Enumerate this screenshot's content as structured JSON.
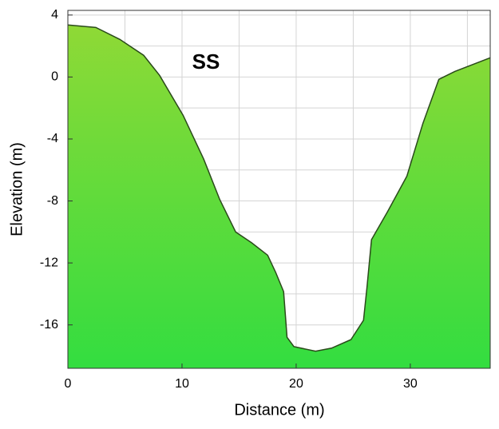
{
  "chart_data": {
    "type": "area",
    "annotation": "SS",
    "x_label": "Distance (m)",
    "y_label": "Elevation (m)",
    "x": [
      0,
      2.45,
      4.55,
      6.64,
      8.04,
      10.1,
      11.9,
      13.3,
      14.7,
      16.1,
      17.5,
      18.2,
      18.9,
      19.2,
      19.8,
      21.7,
      23.1,
      24.8,
      25.9,
      26.2,
      26.6,
      28.0,
      29.7,
      31.1,
      32.5,
      33.9,
      37
    ],
    "values": [
      3.36,
      3.2,
      2.43,
      1.4,
      0.1,
      -2.48,
      -5.3,
      -7.9,
      -10.0,
      -10.7,
      -11.5,
      -12.6,
      -13.85,
      -16.8,
      -17.4,
      -17.7,
      -17.5,
      -16.95,
      -15.7,
      -13.6,
      -10.5,
      -8.7,
      -6.4,
      -3.0,
      -0.15,
      0.36,
      1.24
    ],
    "color_top": "#8fd936",
    "color_bottom": "#33dd40",
    "line_color": "#2a4a1a",
    "xlim": [
      0,
      37
    ],
    "xticks": [
      0,
      10,
      20,
      30
    ],
    "ylim": [
      -18.8,
      4.3
    ],
    "yticks": [
      4,
      0,
      -4,
      -8,
      -12,
      -16
    ],
    "xgrid": [
      5,
      10,
      15,
      20,
      25,
      30,
      35
    ],
    "ygrid": [
      4,
      2,
      0,
      -2,
      -4,
      -6,
      -8,
      -10,
      -12,
      -14,
      -16,
      -18
    ],
    "grid": true
  }
}
